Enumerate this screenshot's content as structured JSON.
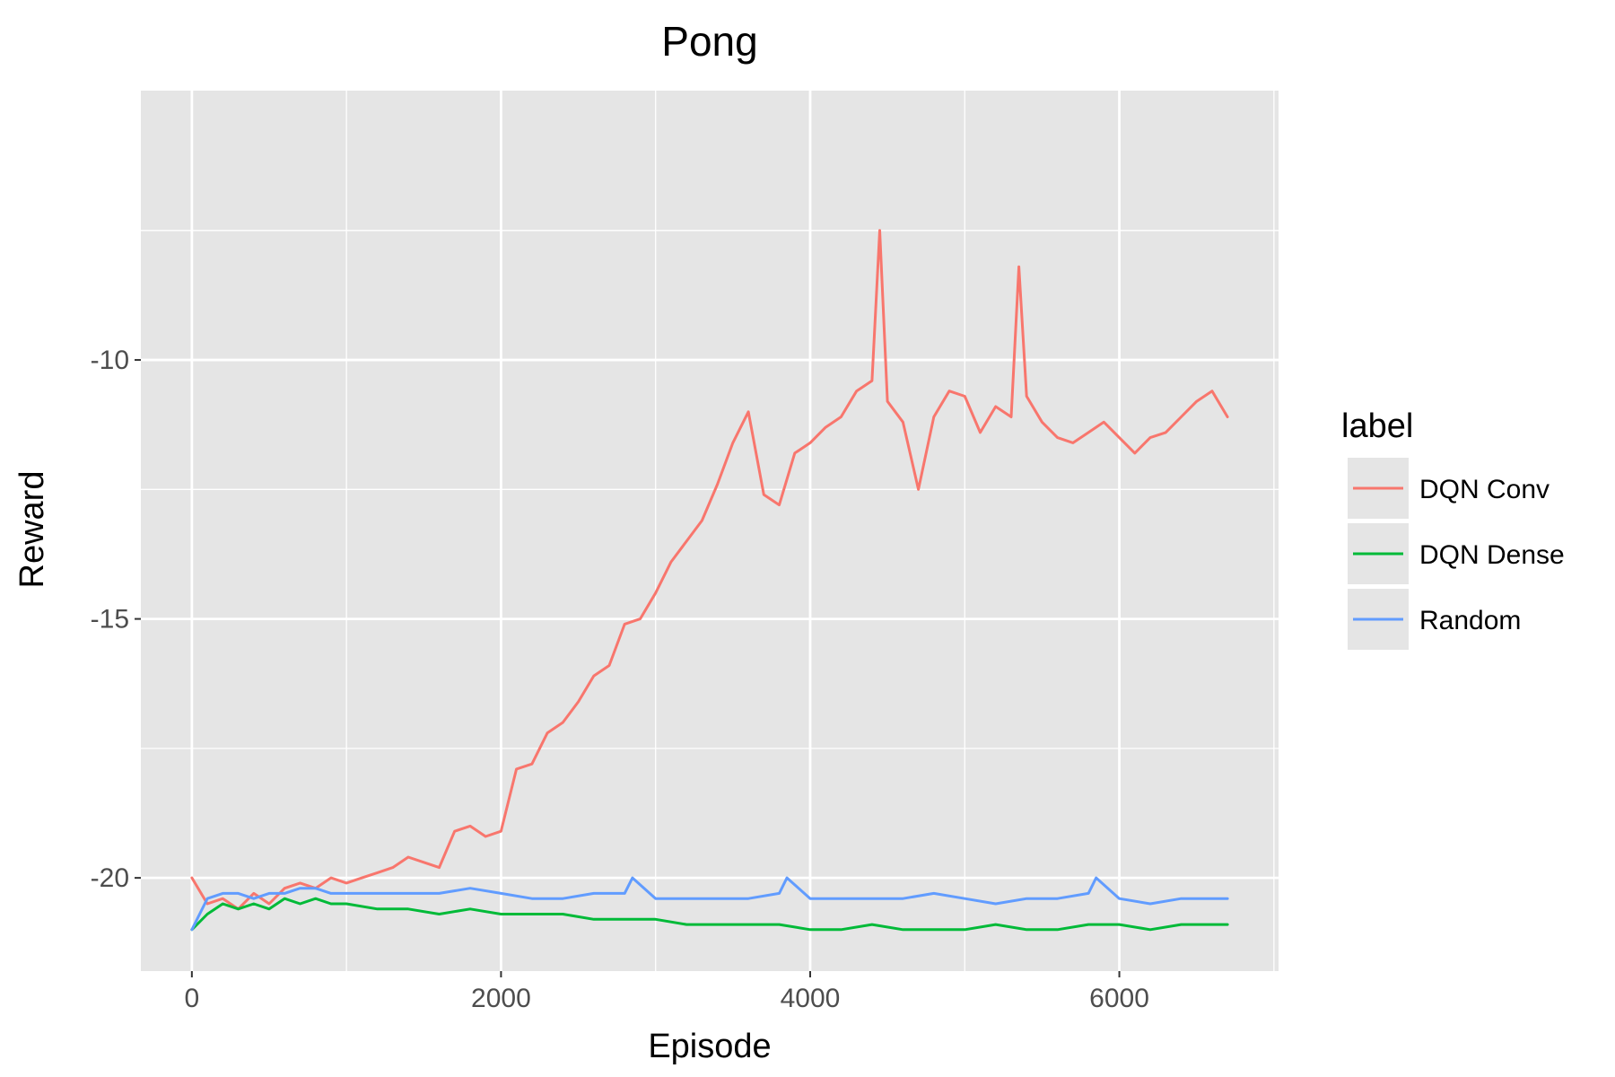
{
  "chart_data": {
    "type": "line",
    "title": "Pong",
    "xlabel": "Episode",
    "ylabel": "Reward",
    "xlim": [
      -330,
      7030
    ],
    "ylim": [
      -21.8,
      -4.8
    ],
    "x_ticks": [
      0,
      2000,
      4000,
      6000
    ],
    "x_tick_labels": [
      "0",
      "2000",
      "4000",
      "6000"
    ],
    "x_minor_ticks": [
      1000,
      3000,
      5000,
      7000
    ],
    "y_ticks": [
      -20,
      -15,
      -10
    ],
    "y_tick_labels": [
      "-20",
      "-15",
      "-10"
    ],
    "y_minor_ticks": [
      -17.5,
      -12.5,
      -7.5
    ],
    "grid": true,
    "legend": {
      "title": "label",
      "position": "right"
    },
    "background_color": "#e5e5e5",
    "grid_color": "#ffffff",
    "series": [
      {
        "name": "DQN Conv",
        "color": "#f8766d",
        "x": [
          0,
          100,
          200,
          300,
          400,
          500,
          600,
          700,
          800,
          900,
          1000,
          1100,
          1200,
          1300,
          1400,
          1500,
          1600,
          1700,
          1800,
          1900,
          2000,
          2100,
          2200,
          2300,
          2400,
          2500,
          2600,
          2700,
          2800,
          2900,
          3000,
          3100,
          3200,
          3300,
          3400,
          3500,
          3600,
          3700,
          3800,
          3900,
          4000,
          4100,
          4200,
          4300,
          4400,
          4450,
          4500,
          4600,
          4700,
          4800,
          4900,
          5000,
          5100,
          5200,
          5300,
          5350,
          5400,
          5500,
          5600,
          5700,
          5800,
          5900,
          6000,
          6100,
          6200,
          6300,
          6400,
          6500,
          6600,
          6700
        ],
        "y": [
          -20,
          -20.5,
          -20.4,
          -20.6,
          -20.3,
          -20.5,
          -20.2,
          -20.1,
          -20.2,
          -20,
          -20.1,
          -20,
          -19.9,
          -19.8,
          -19.6,
          -19.7,
          -19.8,
          -19.1,
          -19,
          -19.2,
          -19.1,
          -17.9,
          -17.8,
          -17.2,
          -17,
          -16.6,
          -16.1,
          -15.9,
          -15.1,
          -15,
          -14.5,
          -13.9,
          -13.5,
          -13.1,
          -12.4,
          -11.6,
          -11,
          -12.6,
          -12.8,
          -11.8,
          -11.6,
          -11.3,
          -11.1,
          -10.6,
          -10.4,
          -7.5,
          -10.8,
          -11.2,
          -12.5,
          -11.1,
          -10.6,
          -10.7,
          -11.4,
          -10.9,
          -11.1,
          -8.2,
          -10.7,
          -11.2,
          -11.5,
          -11.6,
          -11.4,
          -11.2,
          -11.5,
          -11.8,
          -11.5,
          -11.4,
          -11.1,
          -10.8,
          -10.6,
          -11.1
        ]
      },
      {
        "name": "DQN Dense",
        "color": "#00ba38",
        "x": [
          0,
          100,
          200,
          300,
          400,
          500,
          600,
          700,
          800,
          900,
          1000,
          1200,
          1400,
          1600,
          1800,
          2000,
          2200,
          2400,
          2600,
          2800,
          3000,
          3200,
          3400,
          3600,
          3800,
          4000,
          4200,
          4400,
          4600,
          4800,
          5000,
          5200,
          5400,
          5600,
          5800,
          6000,
          6200,
          6400,
          6600,
          6700
        ],
        "y": [
          -21,
          -20.7,
          -20.5,
          -20.6,
          -20.5,
          -20.6,
          -20.4,
          -20.5,
          -20.4,
          -20.5,
          -20.5,
          -20.6,
          -20.6,
          -20.7,
          -20.6,
          -20.7,
          -20.7,
          -20.7,
          -20.8,
          -20.8,
          -20.8,
          -20.9,
          -20.9,
          -20.9,
          -20.9,
          -21,
          -21,
          -20.9,
          -21,
          -21,
          -21,
          -20.9,
          -21,
          -21,
          -20.9,
          -20.9,
          -21,
          -20.9,
          -20.9,
          -20.9
        ]
      },
      {
        "name": "Random",
        "color": "#619cff",
        "x": [
          0,
          100,
          200,
          300,
          400,
          500,
          600,
          700,
          800,
          900,
          1000,
          1200,
          1400,
          1600,
          1800,
          2000,
          2200,
          2400,
          2600,
          2800,
          2850,
          3000,
          3200,
          3400,
          3600,
          3800,
          3850,
          4000,
          4200,
          4400,
          4600,
          4800,
          5000,
          5200,
          5400,
          5600,
          5800,
          5850,
          6000,
          6200,
          6400,
          6600,
          6700
        ],
        "y": [
          -21,
          -20.4,
          -20.3,
          -20.3,
          -20.4,
          -20.3,
          -20.3,
          -20.2,
          -20.2,
          -20.3,
          -20.3,
          -20.3,
          -20.3,
          -20.3,
          -20.2,
          -20.3,
          -20.4,
          -20.4,
          -20.3,
          -20.3,
          -20,
          -20.4,
          -20.4,
          -20.4,
          -20.4,
          -20.3,
          -20,
          -20.4,
          -20.4,
          -20.4,
          -20.4,
          -20.3,
          -20.4,
          -20.5,
          -20.4,
          -20.4,
          -20.3,
          -20,
          -20.4,
          -20.5,
          -20.4,
          -20.4,
          -20.4
        ]
      }
    ]
  }
}
